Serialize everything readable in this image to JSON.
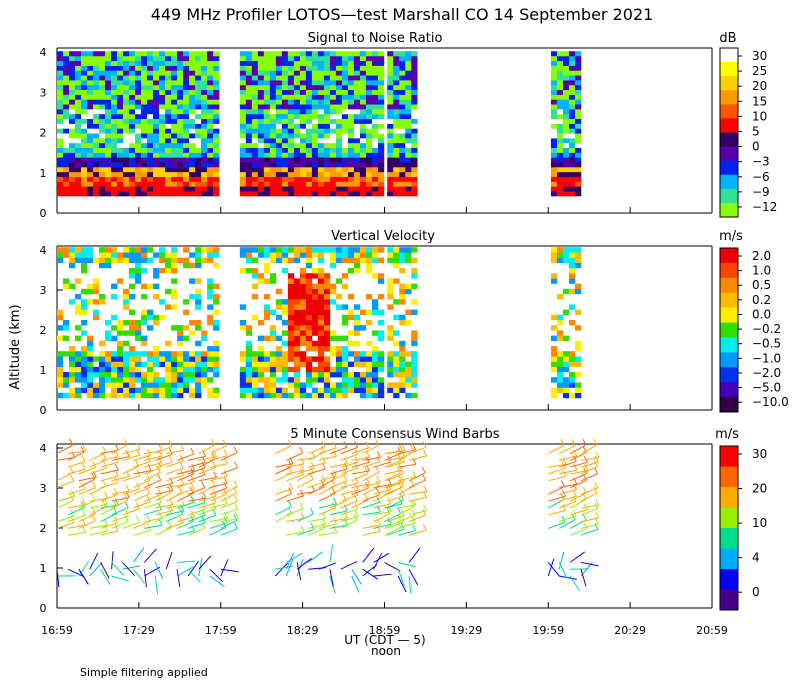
{
  "title": "449 MHz Profiler LOTOS—test Marshall CO 14 September 2021",
  "footnote": "Simple filtering applied",
  "shared_y_label": "Altitude (km)",
  "x_axis": {
    "ticks": [
      "16:59",
      "17:29",
      "17:59",
      "18:29",
      "18:59",
      "19:29",
      "19:59",
      "20:29",
      "20:59"
    ],
    "label": "UT  (CDT — 5)",
    "sublabel": "noon"
  },
  "chart_data": [
    {
      "type": "heatmap",
      "title": "Signal to Noise Ratio",
      "xlabel": "UT (CDT - 5)",
      "ylabel": "Altitude (km)",
      "y_ticks": [
        "0",
        "1",
        "2",
        "3",
        "4"
      ],
      "ylim": [
        0,
        4.1
      ],
      "units": "dB",
      "colorbar_labels": [
        "30",
        "25",
        "20",
        "15",
        "10",
        "5",
        "0",
        "−3",
        "−6",
        "−9",
        "−12"
      ],
      "colorbar_colors": [
        "#ffffff",
        "#ffff00",
        "#ffd000",
        "#ff9900",
        "#ff5500",
        "#ff0000",
        "#330066",
        "#5500aa",
        "#0022ee",
        "#00b4ff",
        "#33e099",
        "#88ff00"
      ],
      "data_windows": [
        {
          "start": "16:59",
          "end": "17:57"
        },
        {
          "start": "18:06",
          "end": "18:58"
        },
        {
          "start": "19:00",
          "end": "19:10"
        },
        {
          "start": "20:00",
          "end": "20:09"
        }
      ]
    },
    {
      "type": "heatmap",
      "title": "Vertical Velocity",
      "xlabel": "UT (CDT - 5)",
      "ylabel": "Altitude (km)",
      "y_ticks": [
        "0",
        "1",
        "2",
        "3",
        "4"
      ],
      "ylim": [
        0,
        4.1
      ],
      "units": "m/s",
      "colorbar_labels": [
        "2.0",
        "1.0",
        "0.5",
        "0.2",
        "0.0",
        "−0.2",
        "−0.5",
        "−1.0",
        "−2.0",
        "−5.0",
        "−10.0"
      ],
      "colorbar_colors": [
        "#ee0000",
        "#ff4400",
        "#ff8800",
        "#ffbb00",
        "#ffee00",
        "#33dd00",
        "#00eeee",
        "#0099ff",
        "#0033ee",
        "#4400bb",
        "#330044"
      ],
      "data_windows": [
        {
          "start": "16:59",
          "end": "17:57"
        },
        {
          "start": "18:06",
          "end": "18:58"
        },
        {
          "start": "19:00",
          "end": "19:10"
        },
        {
          "start": "20:00",
          "end": "20:09"
        }
      ]
    },
    {
      "type": "scatter",
      "title": "5 Minute Consensus Wind Barbs",
      "xlabel": "UT (CDT - 5)",
      "ylabel": "Altitude (km)",
      "y_ticks": [
        "0",
        "1",
        "2",
        "3",
        "4"
      ],
      "ylim": [
        0,
        4.1
      ],
      "units": "m/s",
      "colorbar_labels": [
        "30",
        "20",
        "10",
        "4",
        "0"
      ],
      "colorbar_colors": [
        "#ff0000",
        "#ff6600",
        "#ffaa00",
        "#99ee00",
        "#00dd88",
        "#00aaff",
        "#0000ff",
        "#440088"
      ],
      "data_windows": [
        {
          "start": "16:59",
          "end": "17:59"
        },
        {
          "start": "18:19",
          "end": "18:59"
        },
        {
          "start": "19:00",
          "end": "19:10"
        },
        {
          "start": "19:59",
          "end": "20:12"
        }
      ]
    }
  ]
}
